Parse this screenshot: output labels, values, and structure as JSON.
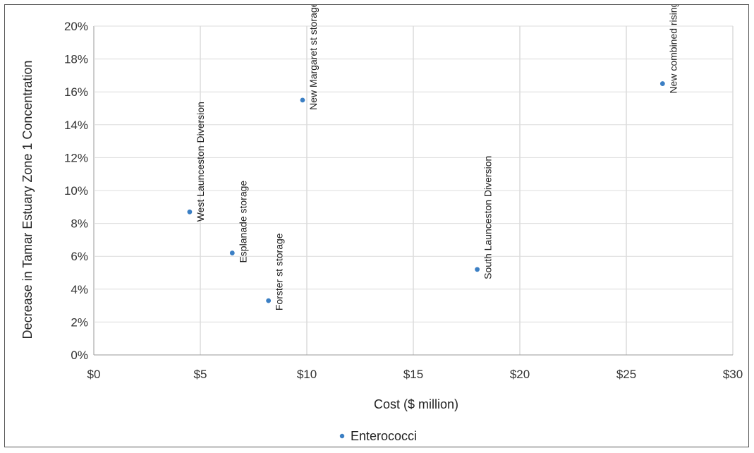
{
  "chart_data": {
    "type": "scatter",
    "title": "",
    "xlabel": "Cost ($ million)",
    "ylabel": "Decrease in Tamar Estuary Zone 1 Concentration",
    "xlim": [
      0,
      30
    ],
    "ylim": [
      0,
      20
    ],
    "x_ticks": [
      "$0",
      "$5",
      "$10",
      "$15",
      "$20",
      "$25",
      "$30"
    ],
    "y_ticks": [
      "0%",
      "2%",
      "4%",
      "6%",
      "8%",
      "10%",
      "12%",
      "14%",
      "16%",
      "18%",
      "20%"
    ],
    "grid": true,
    "legend": {
      "position": "bottom",
      "entries": [
        "Enterococci"
      ]
    },
    "series": [
      {
        "name": "Enterococci",
        "color": "#3b7fc4",
        "points": [
          {
            "x": 4.5,
            "y": 8.7,
            "label": "West Launceston Diversion"
          },
          {
            "x": 6.5,
            "y": 6.2,
            "label": "Esplanade storage"
          },
          {
            "x": 8.2,
            "y": 3.3,
            "label": "Forster st storage"
          },
          {
            "x": 9.8,
            "y": 15.5,
            "label": "New Margaret st storage"
          },
          {
            "x": 18.0,
            "y": 5.2,
            "label": "South Launceston Diversion"
          },
          {
            "x": 26.7,
            "y": 16.5,
            "label": "New combined rising main"
          }
        ]
      }
    ]
  }
}
